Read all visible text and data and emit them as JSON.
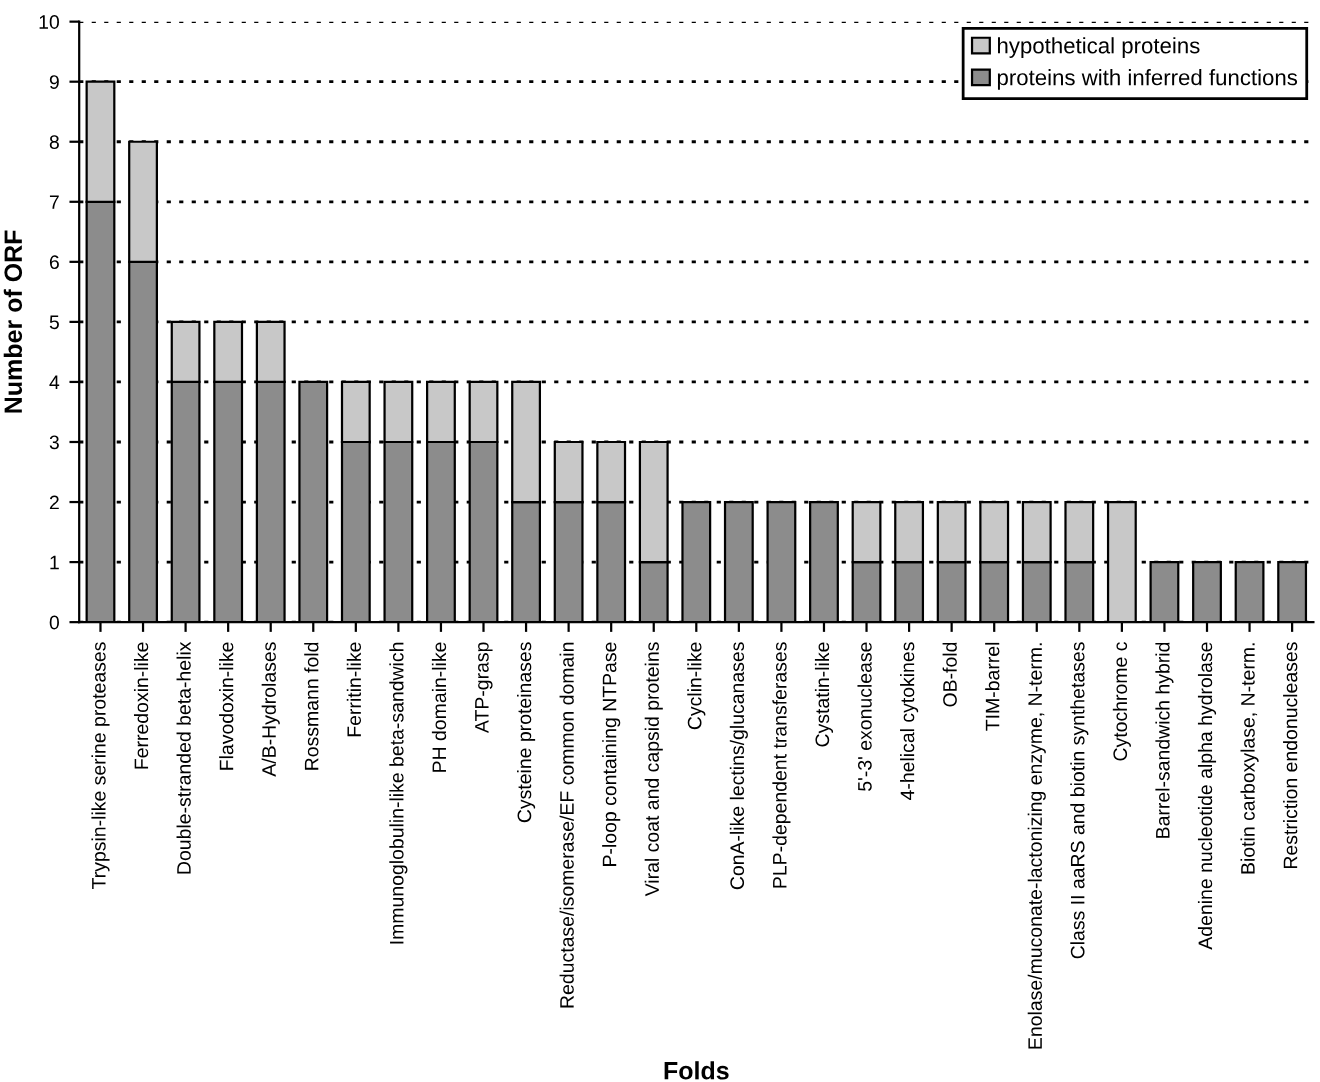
{
  "chart_data": {
    "type": "bar",
    "stacked": true,
    "xlabel": "Folds",
    "ylabel": "Number of ORF",
    "categories": [
      "Trypsin-like serine proteases",
      "Ferredoxin-like",
      "Double-stranded beta-helix",
      "Flavodoxin-like",
      "A/B-Hydrolases",
      "Rossmann fold",
      "Ferritin-like",
      "Immunoglobulin-like beta-sandwich",
      "PH domain-like",
      "ATP-grasp",
      "Cysteine proteinases",
      "Reductase/isomerase/EF common domain",
      "P-loop containing NTPase",
      "Viral coat and capsid proteins",
      "Cyclin-like",
      "ConA-like lectins/glucanases",
      "PLP-dependent transferases",
      "Cystatin-like",
      "5'-3' exonuclease",
      "4-helical cytokines",
      "OB-fold",
      "TIM-barrel",
      "Enolase/muconate-lactonizing enzyme, N-term.",
      "Class II aaRS and biotin synthetases",
      "Cytochrome c",
      "Barrel-sandwich hybrid",
      "Adenine nucleotide alpha hydrolase",
      "Biotin carboxylase, N-term.",
      "Restriction endonucleases"
    ],
    "series": [
      {
        "name": "proteins with inferred functions",
        "color": "#8c8c8c",
        "values": [
          7,
          6,
          4,
          4,
          4,
          4,
          3,
          3,
          3,
          3,
          2,
          2,
          2,
          1,
          2,
          2,
          2,
          2,
          1,
          1,
          1,
          1,
          1,
          1,
          0,
          1,
          1,
          1,
          1
        ]
      },
      {
        "name": "hypothetical proteins",
        "color": "#c8c8c8",
        "values": [
          2,
          2,
          1,
          1,
          1,
          0,
          1,
          1,
          1,
          1,
          2,
          1,
          1,
          2,
          0,
          0,
          0,
          0,
          1,
          1,
          1,
          1,
          1,
          1,
          2,
          0,
          0,
          0,
          0
        ]
      }
    ],
    "ylim": [
      0,
      10
    ],
    "yticks": [
      0,
      1,
      2,
      3,
      4,
      5,
      6,
      7,
      8,
      9,
      10
    ],
    "grid": "y",
    "legend": "top right"
  }
}
